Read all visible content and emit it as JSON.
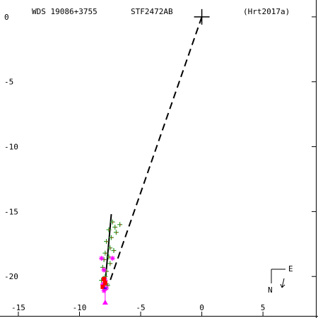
{
  "header": {
    "wds": "WDS 19086+3755",
    "disc": "STF2472AB",
    "ref": "(Hrt2017a)"
  },
  "compass": {
    "east": "E",
    "north": "N"
  },
  "colors": {
    "axis": "#000000",
    "green": "#2ca02c",
    "magenta": "#ff00ff",
    "red": "#ff0000",
    "blue": "#0000ff"
  },
  "chart_data": {
    "type": "scatter",
    "title": "",
    "xlabel": "",
    "ylabel": "",
    "xlim": [
      -16.5,
      9.5
    ],
    "ylim": [
      -23.2,
      1.3
    ],
    "x_ticks": [
      -15,
      -10,
      -5,
      0,
      5
    ],
    "x_tick_labels": [
      "-15",
      "-10",
      "-5",
      "0",
      "5"
    ],
    "y_ticks": [
      0,
      -5,
      -10,
      -15,
      -20
    ],
    "y_tick_labels": [
      "0",
      "-5",
      "-10",
      "-15",
      "-20"
    ],
    "primary": [
      0,
      0
    ],
    "dashed_line": {
      "from": [
        0,
        0
      ],
      "to": [
        -7.6,
        -20.6
      ]
    },
    "orbit_arc": {
      "from": [
        -7.4,
        -15.2
      ],
      "to": [
        -7.9,
        -20.5
      ]
    },
    "series": [
      {
        "name": "",
        "marker": "plus",
        "color": "green",
        "points": [
          [
            -7.3,
            -15.8
          ],
          [
            -7.1,
            -16.2
          ],
          [
            -7.6,
            -16.4
          ],
          [
            -7.0,
            -16.6
          ],
          [
            -6.7,
            -16.0
          ],
          [
            -7.4,
            -17.0
          ],
          [
            -7.8,
            -17.3
          ],
          [
            -7.5,
            -17.8
          ],
          [
            -7.2,
            -18.0
          ],
          [
            -7.9,
            -18.2
          ],
          [
            -7.6,
            -18.5
          ],
          [
            -8.0,
            -18.7
          ],
          [
            -7.5,
            -19.0
          ],
          [
            -8.1,
            -19.3
          ],
          [
            -7.8,
            -19.6
          ],
          [
            -7.9,
            -20.0
          ],
          [
            -8.2,
            -20.3
          ],
          [
            -7.7,
            -20.7
          ],
          [
            -7.9,
            -21.0
          ]
        ]
      },
      {
        "name": "",
        "marker": "asterisk",
        "color": "magenta",
        "points": [
          [
            -8.2,
            -18.6
          ],
          [
            -7.3,
            -18.6
          ],
          [
            -8.0,
            -19.5
          ],
          [
            -7.9,
            -20.3
          ],
          [
            -8.1,
            -20.6
          ],
          [
            -7.8,
            -20.9
          ],
          [
            -8.0,
            -21.1
          ]
        ]
      },
      {
        "name": "",
        "marker": "triangle",
        "color": "magenta",
        "points": [
          [
            -7.9,
            -22.0
          ]
        ]
      },
      {
        "name": "",
        "marker": "square",
        "color": "red",
        "points": [
          [
            -8.0,
            -20.2
          ],
          [
            -7.9,
            -20.5
          ],
          [
            -8.1,
            -20.8
          ]
        ]
      }
    ]
  }
}
